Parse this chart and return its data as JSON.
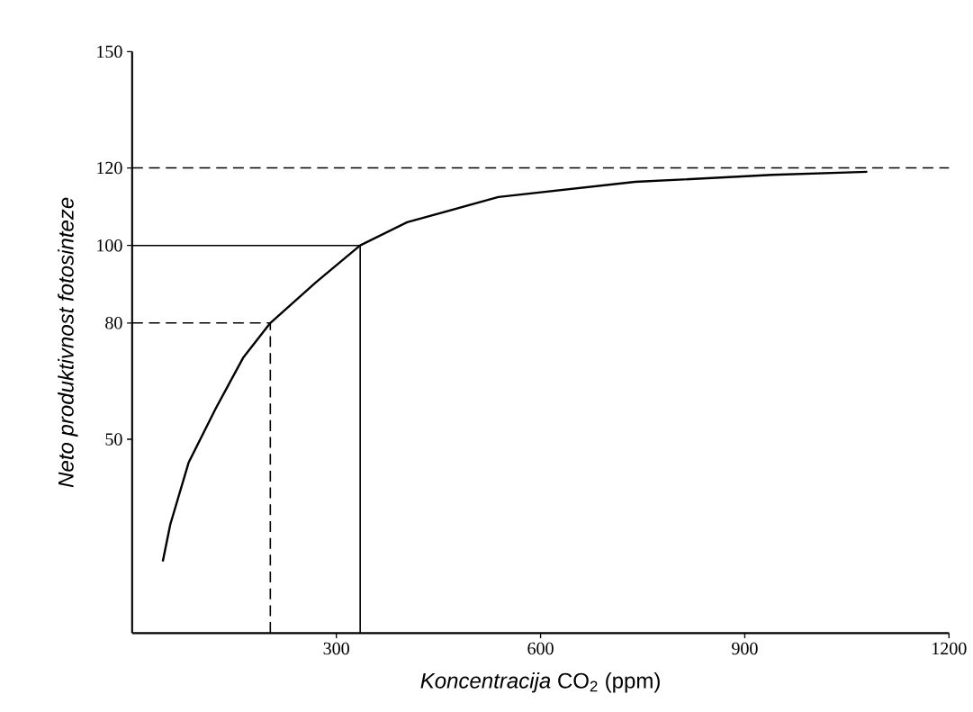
{
  "chart_data": {
    "type": "line",
    "xlabel": "*Koncentracija* CO$_{2}$ (ppm)",
    "ylabel": "Neto produktivnost fotosinteze",
    "xlim": [
      0,
      1200
    ],
    "ylim": [
      0,
      150
    ],
    "xticks": [
      300,
      600,
      900,
      1200
    ],
    "yticks": [
      50,
      80,
      100,
      120,
      150
    ],
    "series": [
      {
        "color": "#000000",
        "x": [
          45,
          56,
          83,
          123,
          163,
          203,
          270,
          335,
          404,
          538,
          739,
          940,
          1080
        ],
        "values": [
          18.5,
          28,
          44,
          58,
          71,
          80,
          90.5,
          100,
          106,
          112.5,
          116.4,
          118.2,
          119
        ]
      },
      {
        "color": "#000000",
        "line_style": "solid",
        "x": [
          0,
          335,
          335
        ],
        "values": [
          100,
          100,
          0
        ]
      },
      {
        "color": "#000000",
        "line_style": "dashed",
        "x": [
          0,
          203,
          203
        ],
        "values": [
          80,
          80,
          0
        ]
      }
    ],
    "ref_lines": [
      {
        "axis": "y",
        "value": 120,
        "color": "#000000",
        "line_style": "dashed"
      }
    ]
  }
}
